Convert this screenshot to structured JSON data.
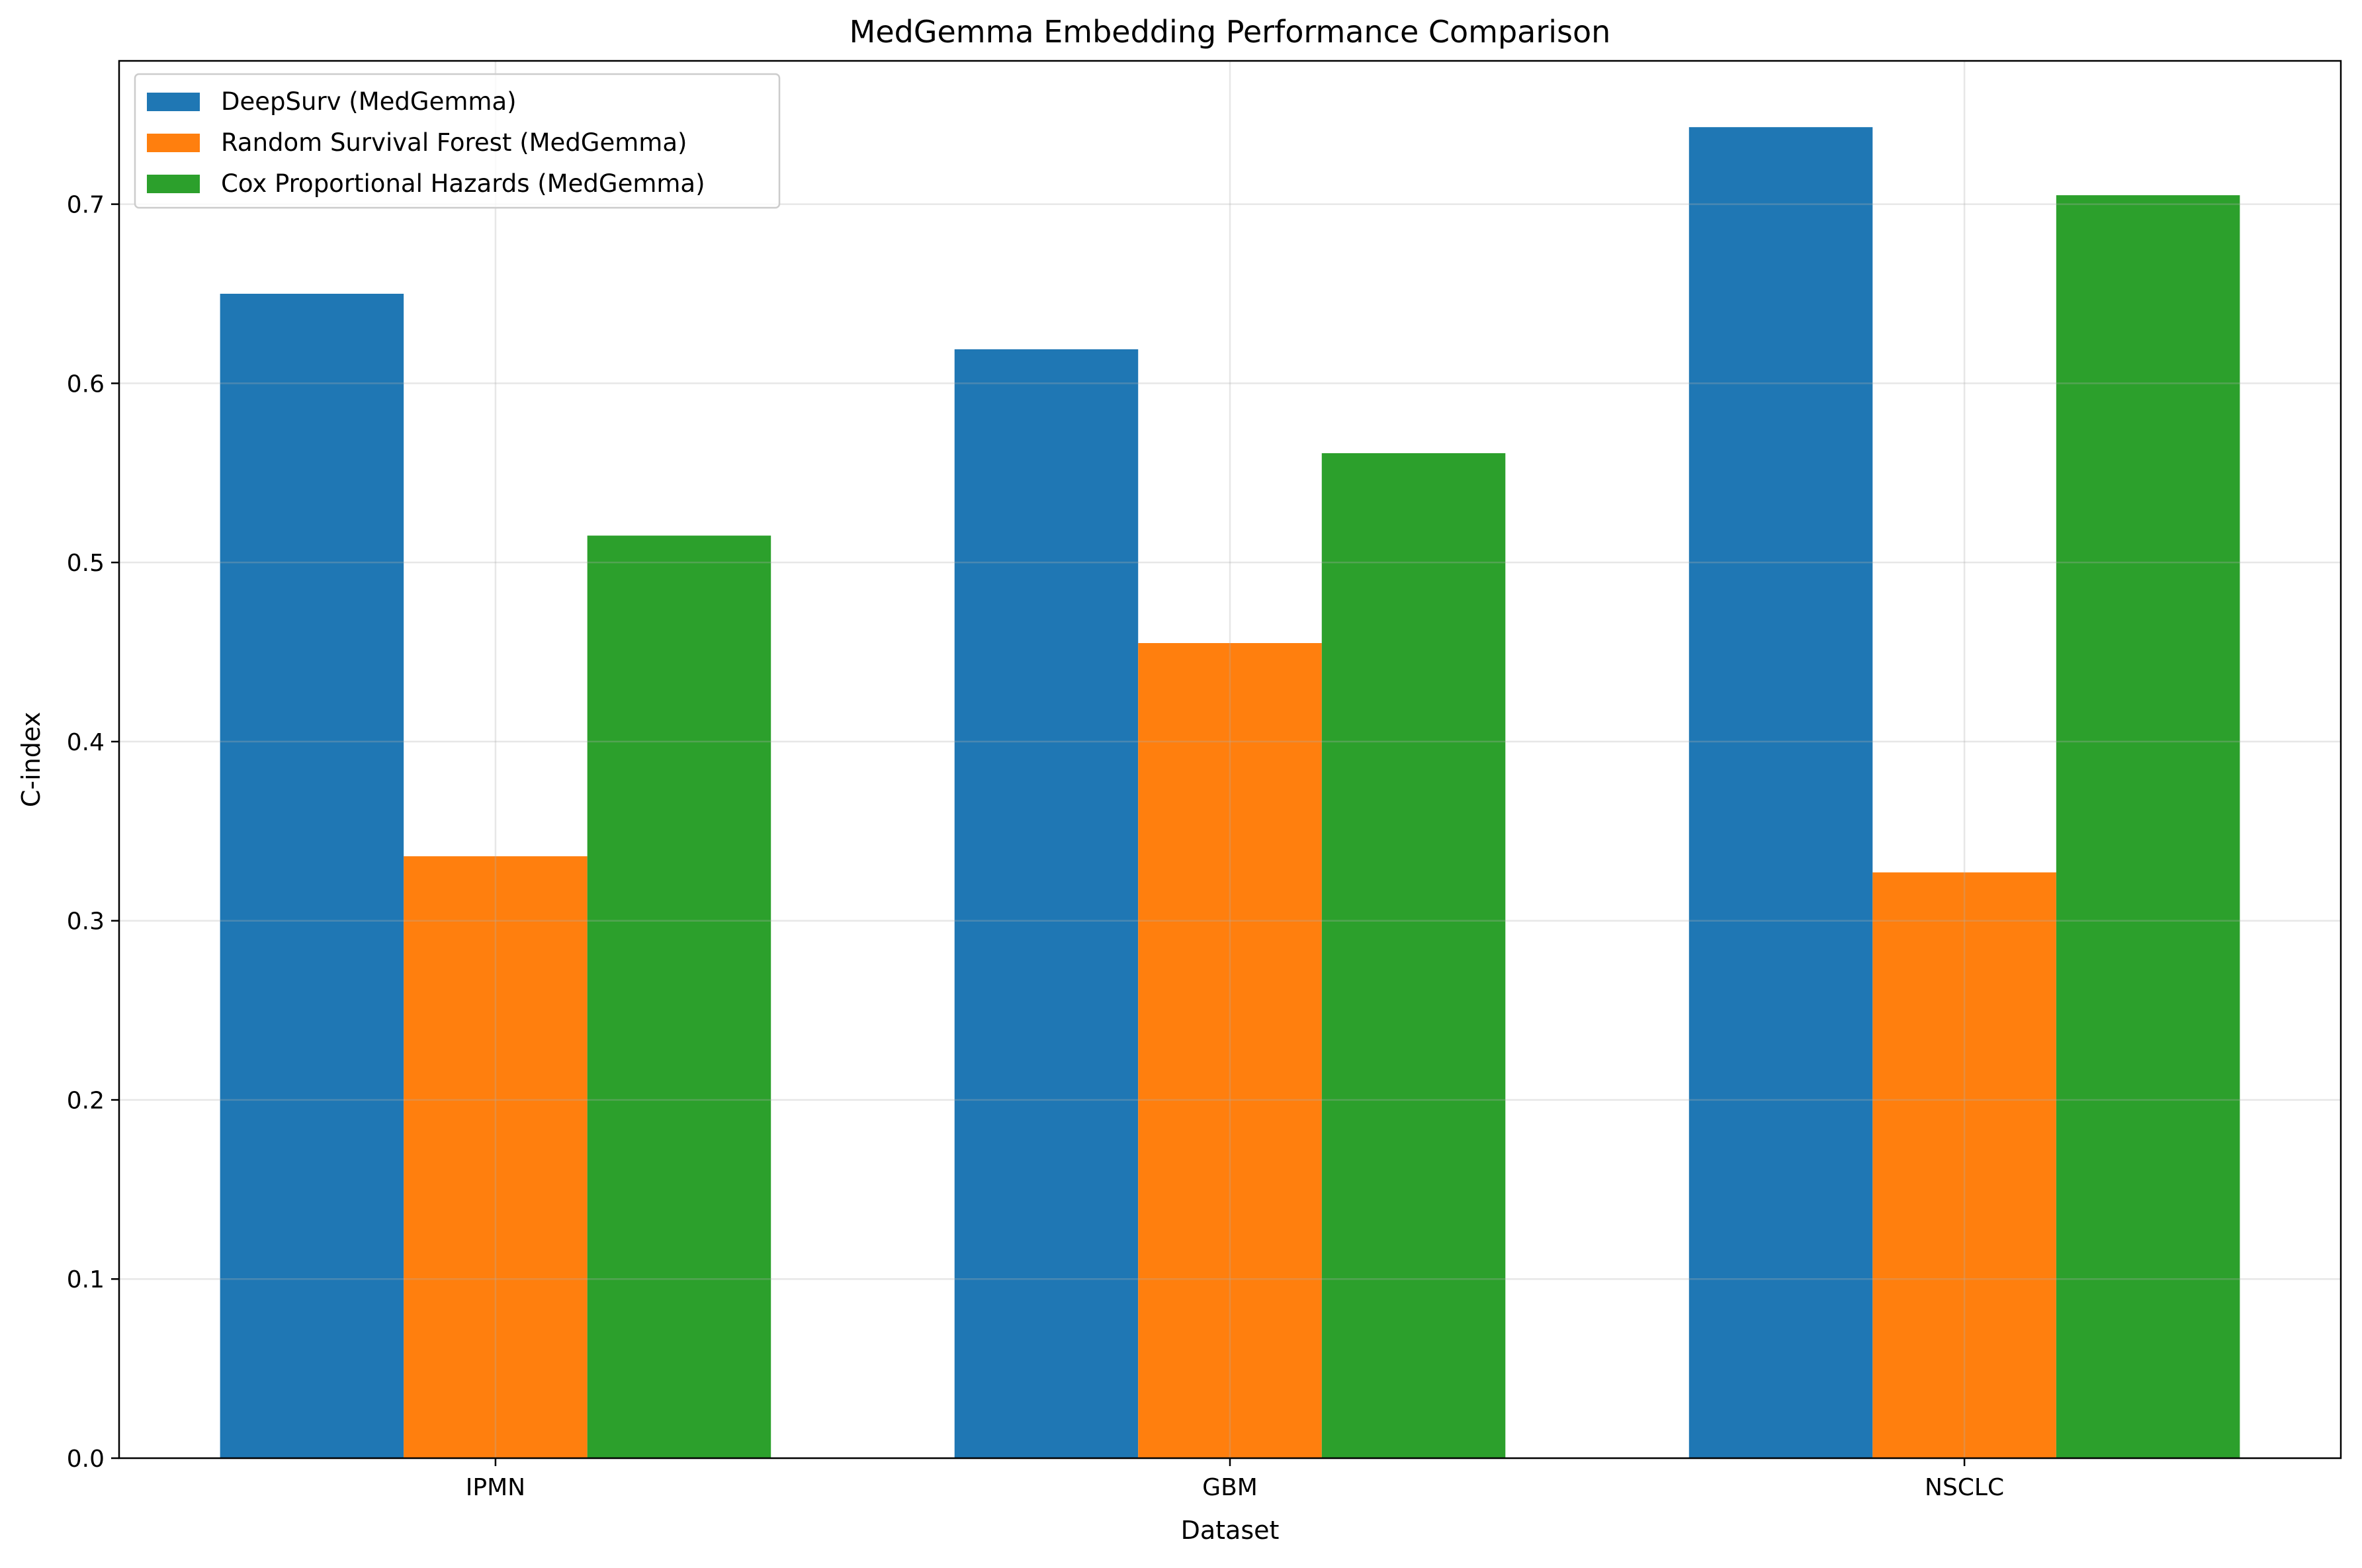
{
  "chart_data": {
    "type": "bar",
    "title": "MedGemma Embedding Performance Comparison",
    "xlabel": "Dataset",
    "ylabel": "C-index",
    "categories": [
      "IPMN",
      "GBM",
      "NSCLC"
    ],
    "series": [
      {
        "name": "DeepSurv (MedGemma)",
        "color": "#1f77b4",
        "values": [
          0.65,
          0.619,
          0.743
        ]
      },
      {
        "name": "Random Survival Forest (MedGemma)",
        "color": "#ff7f0e",
        "values": [
          0.336,
          0.455,
          0.327
        ]
      },
      {
        "name": "Cox Proportional Hazards (MedGemma)",
        "color": "#2ca02c",
        "values": [
          0.515,
          0.561,
          0.705
        ]
      }
    ],
    "ylim": [
      0,
      0.78
    ],
    "yticks": [
      "0.0",
      "0.1",
      "0.2",
      "0.3",
      "0.4",
      "0.5",
      "0.6",
      "0.7"
    ],
    "grid": true,
    "legend_position": "top-left"
  }
}
